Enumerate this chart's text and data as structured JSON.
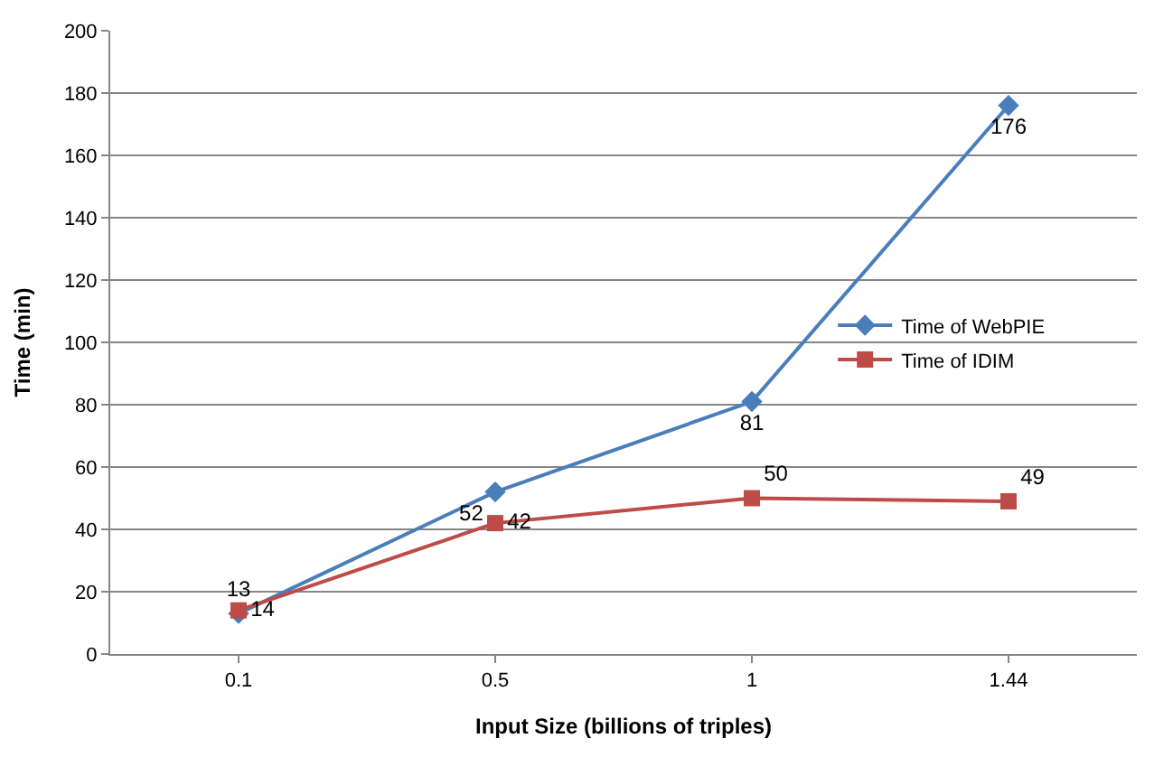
{
  "chart_data": {
    "type": "line",
    "xlabel": "Input Size (billions of triples)",
    "ylabel": "Time (min)",
    "categories": [
      "0.1",
      "0.5",
      "1",
      "1.44"
    ],
    "series": [
      {
        "name": "Time of WebPIE",
        "color": "#4a7ebb",
        "values": [
          13,
          52,
          81,
          176
        ],
        "marker": "diamond"
      },
      {
        "name": "Time of IDIM",
        "color": "#be4b48",
        "values": [
          14,
          42,
          50,
          49
        ],
        "marker": "square"
      }
    ],
    "ylim": [
      0,
      200
    ],
    "yticks": [
      0,
      20,
      40,
      60,
      80,
      100,
      120,
      140,
      160,
      180,
      200
    ],
    "grid": "y",
    "legend": "right",
    "data_labels": true,
    "line_style": "solid"
  }
}
